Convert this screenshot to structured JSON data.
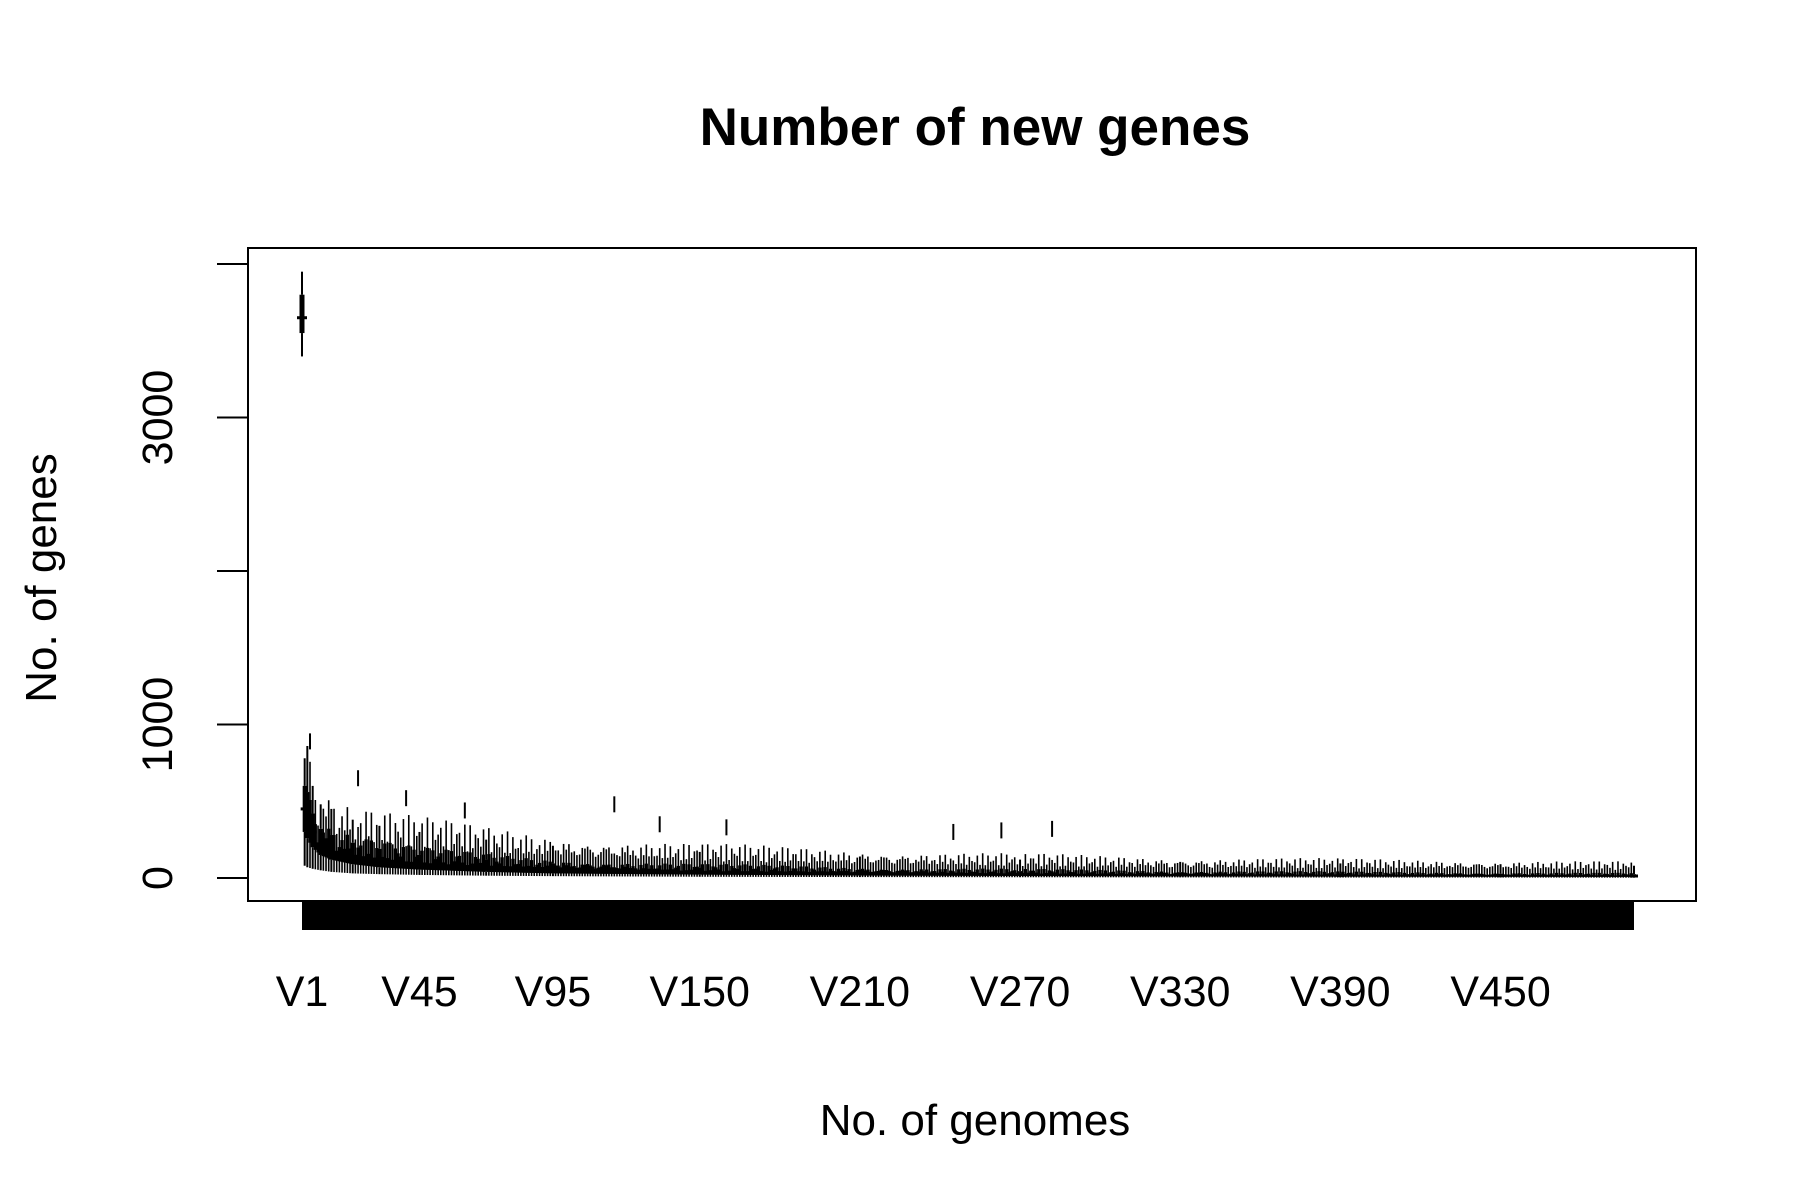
{
  "colors": {
    "background": "#ffffff",
    "ink": "#000000"
  },
  "chart_data": {
    "type": "boxplot",
    "title": "Number of new genes",
    "xlabel": "No. of genomes",
    "ylabel": "No. of genes",
    "grid": false,
    "legend": "none",
    "ylim": [
      -150,
      4000
    ],
    "y_ticks": [
      0,
      1000,
      2000,
      3000,
      4000
    ],
    "y_tick_labels": [
      "0",
      "1000",
      "",
      "3000",
      ""
    ],
    "n_categories": 500,
    "x_tick_labels": [
      "V1",
      "V45",
      "V95",
      "V150",
      "V210",
      "V270",
      "V330",
      "V390",
      "V450"
    ],
    "x_tick_positions": [
      1,
      45,
      95,
      150,
      210,
      270,
      330,
      390,
      450
    ],
    "boxes": [
      {
        "x": 1,
        "min": 3400,
        "q1": 3550,
        "median": 3650,
        "q3": 3800,
        "max": 3950
      },
      {
        "x": 2,
        "min": 80,
        "q1": 300,
        "median": 450,
        "q3": 600,
        "max": 780
      },
      {
        "x": 3,
        "min": 70,
        "q1": 260,
        "median": 400,
        "q3": 560,
        "max": 860
      },
      {
        "x": 5,
        "min": 60,
        "q1": 200,
        "median": 300,
        "q3": 420,
        "max": 600
      },
      {
        "x": 8,
        "min": 50,
        "q1": 150,
        "median": 220,
        "q3": 320,
        "max": 480
      },
      {
        "x": 12,
        "min": 40,
        "q1": 120,
        "median": 180,
        "q3": 280,
        "max": 450
      },
      {
        "x": 20,
        "min": 30,
        "q1": 90,
        "median": 140,
        "q3": 230,
        "max": 380
      },
      {
        "x": 30,
        "min": 25,
        "q1": 70,
        "median": 110,
        "q3": 190,
        "max": 340
      },
      {
        "x": 45,
        "min": 20,
        "q1": 55,
        "median": 90,
        "q3": 150,
        "max": 300
      },
      {
        "x": 70,
        "min": 15,
        "q1": 40,
        "median": 70,
        "q3": 120,
        "max": 250
      },
      {
        "x": 95,
        "min": 12,
        "q1": 30,
        "median": 55,
        "q3": 95,
        "max": 210
      },
      {
        "x": 150,
        "min": 8,
        "q1": 22,
        "median": 40,
        "q3": 70,
        "max": 170
      },
      {
        "x": 210,
        "min": 6,
        "q1": 16,
        "median": 30,
        "q3": 55,
        "max": 140
      },
      {
        "x": 270,
        "min": 5,
        "q1": 13,
        "median": 24,
        "q3": 45,
        "max": 120
      },
      {
        "x": 330,
        "min": 4,
        "q1": 11,
        "median": 20,
        "q3": 38,
        "max": 105
      },
      {
        "x": 390,
        "min": 3,
        "q1": 9,
        "median": 17,
        "q3": 32,
        "max": 95
      },
      {
        "x": 450,
        "min": 3,
        "q1": 8,
        "median": 15,
        "q3": 28,
        "max": 90
      },
      {
        "x": 500,
        "min": 2,
        "q1": 7,
        "median": 13,
        "q3": 25,
        "max": 80
      }
    ],
    "outliers": [
      {
        "x": 1,
        "y": 3450
      },
      {
        "x": 4,
        "y": 890
      },
      {
        "x": 22,
        "y": 650
      },
      {
        "x": 40,
        "y": 520
      },
      {
        "x": 62,
        "y": 440
      },
      {
        "x": 118,
        "y": 480
      },
      {
        "x": 135,
        "y": 350
      },
      {
        "x": 160,
        "y": 330
      },
      {
        "x": 245,
        "y": 300
      },
      {
        "x": 263,
        "y": 310
      },
      {
        "x": 282,
        "y": 320
      }
    ]
  }
}
